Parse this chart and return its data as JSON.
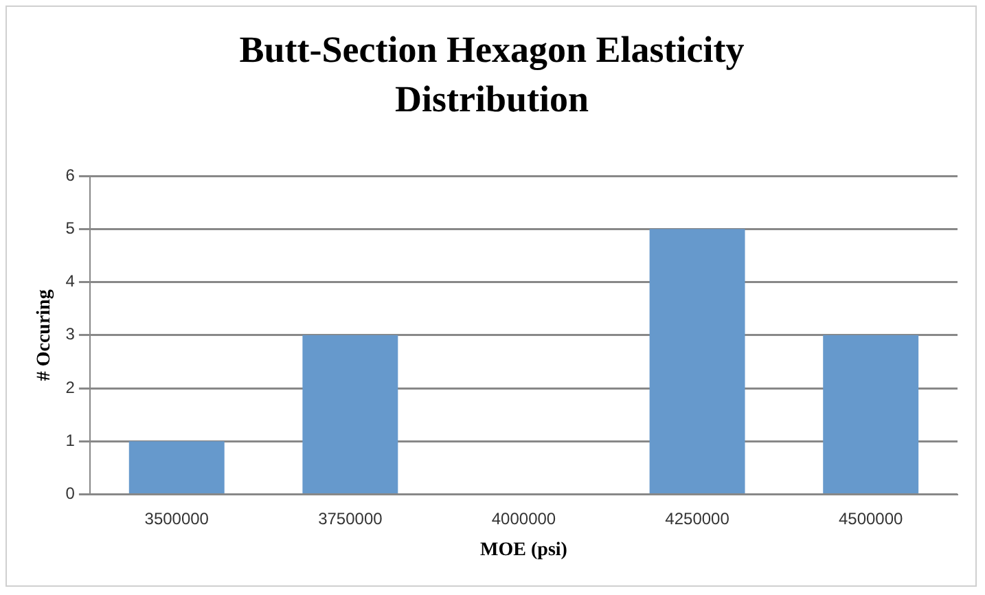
{
  "chart_data": {
    "type": "bar",
    "title": "Butt-Section Hexagon Elasticity Distribution",
    "xlabel": "MOE (psi)",
    "ylabel": "# Occuring",
    "categories": [
      "3500000",
      "3750000",
      "4000000",
      "4250000",
      "4500000"
    ],
    "values": [
      1,
      3,
      0,
      5,
      3
    ],
    "color": "#6699cc",
    "ylim": [
      0,
      6
    ],
    "yticks": [
      0,
      1,
      2,
      3,
      4,
      5,
      6
    ],
    "grid": "y",
    "legend": false
  }
}
